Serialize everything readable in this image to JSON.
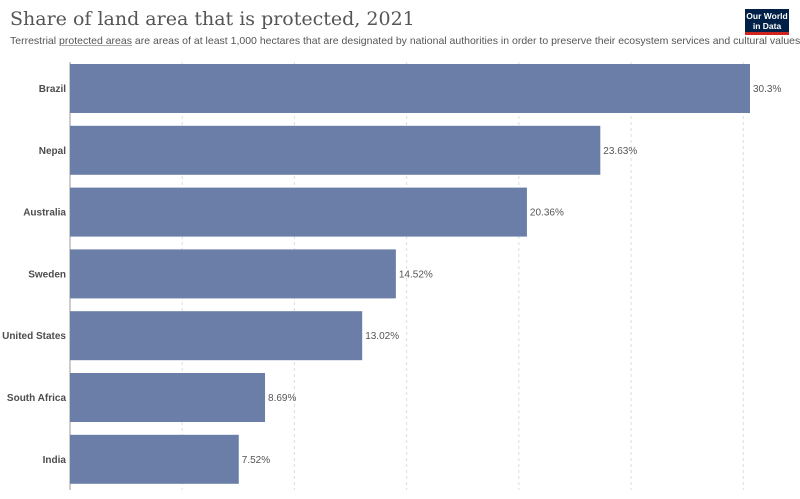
{
  "header": {
    "title": "Share of land area that is protected, 2021",
    "subtitle_before": "Terrestrial ",
    "subtitle_link": "protected areas",
    "subtitle_after": " are areas of at least 1,000 hectares that are designated by national authorities in order to preserve their ecosystem services and cultural values.",
    "logo_line1": "Our World",
    "logo_line2": "in Data"
  },
  "colors": {
    "bar": "#6a7ea8",
    "grid": "#dddddd",
    "axis": "#999999",
    "logo_bg": "#002147",
    "logo_accent": "#ce261e"
  },
  "chart_data": {
    "type": "bar",
    "orientation": "horizontal",
    "categories": [
      "Brazil",
      "Nepal",
      "Australia",
      "Sweden",
      "United States",
      "South Africa",
      "India"
    ],
    "values": [
      30.3,
      23.63,
      20.36,
      14.52,
      13.02,
      8.69,
      7.52
    ],
    "value_labels": [
      "30.3%",
      "23.63%",
      "20.36%",
      "14.52%",
      "13.02%",
      "8.69%",
      "7.52%"
    ],
    "unit": "%",
    "xlim": [
      0,
      30.3
    ],
    "grid": true,
    "grid_step": 5
  }
}
